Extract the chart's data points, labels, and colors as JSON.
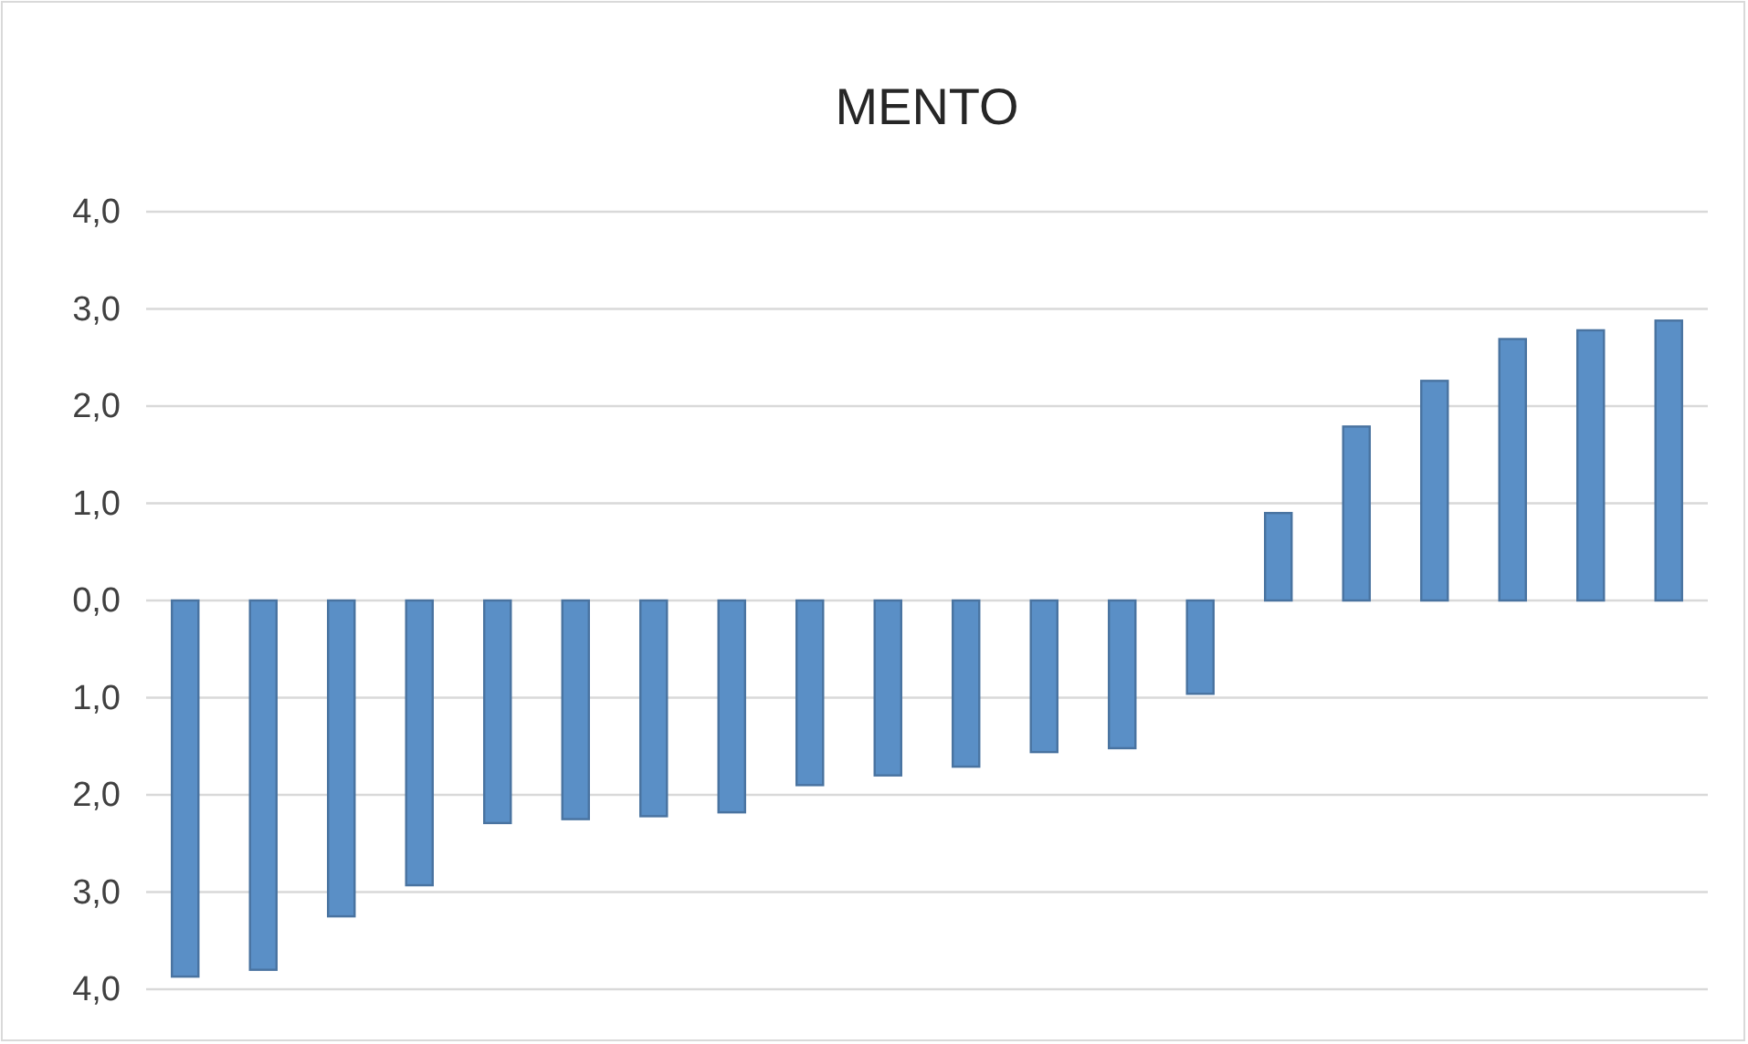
{
  "chart_data": {
    "type": "bar",
    "title": "MENTO",
    "categories": [
      null,
      null,
      null,
      null,
      null,
      null,
      null,
      null,
      null,
      null,
      null,
      null,
      null,
      null,
      null,
      null,
      null,
      null,
      null,
      null
    ],
    "values": [
      -3.87,
      -3.8,
      -3.25,
      -2.93,
      -2.29,
      -2.25,
      -2.22,
      -2.18,
      -1.9,
      -1.8,
      -1.71,
      -1.56,
      -1.52,
      -0.96,
      0.9,
      1.79,
      2.26,
      2.69,
      2.78,
      2.88
    ],
    "color": "#5a8fc6",
    "ylim": [
      -4,
      4
    ],
    "yticks": [
      {
        "value": 4,
        "label": "4,0"
      },
      {
        "value": 3,
        "label": "3,0"
      },
      {
        "value": 2,
        "label": "2,0"
      },
      {
        "value": 1,
        "label": "1,0"
      },
      {
        "value": 0,
        "label": "0,0"
      },
      {
        "value": -1,
        "label": "1,0"
      },
      {
        "value": -2,
        "label": "2,0"
      },
      {
        "value": -3,
        "label": "3,0"
      },
      {
        "value": -4,
        "label": "4,0"
      }
    ],
    "grid": "y"
  }
}
